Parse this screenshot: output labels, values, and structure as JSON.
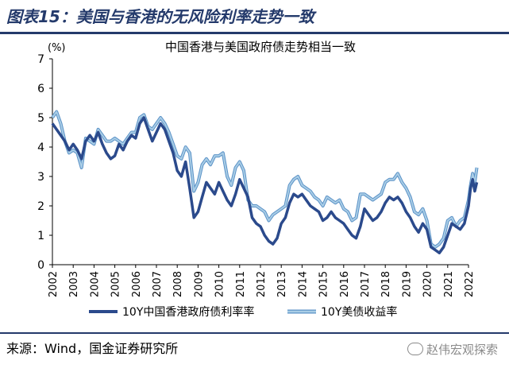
{
  "figure_title": "图表15：美国与香港的无风险利率走势一致",
  "source_text": "来源：Wind，国金证券研究所",
  "watermark": "赵伟宏观探索",
  "colors": {
    "hk": "#2b4a8c",
    "us": "#a9cde6",
    "us_edge": "#5b92c7",
    "title": "#243a6b"
  },
  "chart_data": {
    "type": "line",
    "title": "中国香港与美国政府债走势相当一致",
    "ylabel": "(%)",
    "xlabel": "",
    "ylim": [
      0,
      7
    ],
    "xlim": [
      2002,
      2022
    ],
    "yticks": [
      "0",
      "1",
      "2",
      "3",
      "4",
      "5",
      "6",
      "7"
    ],
    "xticks": [
      "2002",
      "2003",
      "2004",
      "2005",
      "2006",
      "2007",
      "2008",
      "2009",
      "2010",
      "2011",
      "2012",
      "2013",
      "2014",
      "2015",
      "2016",
      "2017",
      "2018",
      "2019",
      "2020",
      "2021",
      "2022"
    ],
    "grid": false,
    "legend": "bottom",
    "series": [
      {
        "name": "10Y中国香港政府债利率率",
        "color": "#2b4a8c",
        "points": [
          [
            2002.0,
            4.8
          ],
          [
            2002.2,
            4.6
          ],
          [
            2002.4,
            4.4
          ],
          [
            2002.6,
            4.2
          ],
          [
            2002.8,
            3.9
          ],
          [
            2003.0,
            4.1
          ],
          [
            2003.2,
            3.9
          ],
          [
            2003.4,
            3.6
          ],
          [
            2003.6,
            4.2
          ],
          [
            2003.8,
            4.4
          ],
          [
            2004.0,
            4.2
          ],
          [
            2004.2,
            4.5
          ],
          [
            2004.4,
            4.1
          ],
          [
            2004.6,
            3.8
          ],
          [
            2004.8,
            3.6
          ],
          [
            2005.0,
            3.7
          ],
          [
            2005.2,
            4.1
          ],
          [
            2005.4,
            3.9
          ],
          [
            2005.6,
            4.2
          ],
          [
            2005.8,
            4.4
          ],
          [
            2006.0,
            4.3
          ],
          [
            2006.2,
            4.8
          ],
          [
            2006.4,
            5.0
          ],
          [
            2006.6,
            4.6
          ],
          [
            2006.8,
            4.2
          ],
          [
            2007.0,
            4.5
          ],
          [
            2007.2,
            4.8
          ],
          [
            2007.4,
            4.6
          ],
          [
            2007.6,
            4.2
          ],
          [
            2007.8,
            3.8
          ],
          [
            2008.0,
            3.2
          ],
          [
            2008.2,
            3.0
          ],
          [
            2008.4,
            3.5
          ],
          [
            2008.6,
            2.6
          ],
          [
            2008.8,
            1.6
          ],
          [
            2009.0,
            1.8
          ],
          [
            2009.2,
            2.3
          ],
          [
            2009.4,
            2.8
          ],
          [
            2009.6,
            2.6
          ],
          [
            2009.8,
            2.4
          ],
          [
            2010.0,
            2.8
          ],
          [
            2010.2,
            2.5
          ],
          [
            2010.4,
            2.2
          ],
          [
            2010.6,
            2.0
          ],
          [
            2010.8,
            2.4
          ],
          [
            2011.0,
            2.9
          ],
          [
            2011.2,
            2.6
          ],
          [
            2011.4,
            2.3
          ],
          [
            2011.6,
            1.6
          ],
          [
            2011.8,
            1.4
          ],
          [
            2012.0,
            1.3
          ],
          [
            2012.2,
            1.0
          ],
          [
            2012.4,
            0.8
          ],
          [
            2012.6,
            0.7
          ],
          [
            2012.8,
            0.9
          ],
          [
            2013.0,
            1.4
          ],
          [
            2013.2,
            1.6
          ],
          [
            2013.4,
            2.1
          ],
          [
            2013.6,
            2.4
          ],
          [
            2013.8,
            2.3
          ],
          [
            2014.0,
            2.4
          ],
          [
            2014.2,
            2.2
          ],
          [
            2014.4,
            2.0
          ],
          [
            2014.6,
            1.9
          ],
          [
            2014.8,
            1.8
          ],
          [
            2015.0,
            1.5
          ],
          [
            2015.2,
            1.6
          ],
          [
            2015.4,
            1.8
          ],
          [
            2015.6,
            1.6
          ],
          [
            2015.8,
            1.5
          ],
          [
            2016.0,
            1.4
          ],
          [
            2016.2,
            1.2
          ],
          [
            2016.4,
            1.0
          ],
          [
            2016.6,
            0.9
          ],
          [
            2016.8,
            1.3
          ],
          [
            2017.0,
            1.9
          ],
          [
            2017.2,
            1.7
          ],
          [
            2017.4,
            1.5
          ],
          [
            2017.6,
            1.6
          ],
          [
            2017.8,
            1.8
          ],
          [
            2018.0,
            2.1
          ],
          [
            2018.2,
            2.3
          ],
          [
            2018.4,
            2.2
          ],
          [
            2018.6,
            2.3
          ],
          [
            2018.8,
            2.1
          ],
          [
            2019.0,
            1.8
          ],
          [
            2019.2,
            1.6
          ],
          [
            2019.4,
            1.3
          ],
          [
            2019.6,
            1.1
          ],
          [
            2019.8,
            1.4
          ],
          [
            2020.0,
            1.2
          ],
          [
            2020.2,
            0.6
          ],
          [
            2020.4,
            0.5
          ],
          [
            2020.6,
            0.4
          ],
          [
            2020.8,
            0.6
          ],
          [
            2021.0,
            1.0
          ],
          [
            2021.2,
            1.4
          ],
          [
            2021.4,
            1.3
          ],
          [
            2021.6,
            1.2
          ],
          [
            2021.8,
            1.4
          ],
          [
            2022.0,
            2.0
          ],
          [
            2022.1,
            2.6
          ],
          [
            2022.2,
            2.9
          ],
          [
            2022.3,
            2.5
          ],
          [
            2022.4,
            2.8
          ]
        ]
      },
      {
        "name": "10Y美债收益率",
        "color": "#a9cde6",
        "points": [
          [
            2002.0,
            5.0
          ],
          [
            2002.2,
            5.2
          ],
          [
            2002.4,
            4.8
          ],
          [
            2002.6,
            4.2
          ],
          [
            2002.8,
            3.8
          ],
          [
            2003.0,
            3.9
          ],
          [
            2003.2,
            3.8
          ],
          [
            2003.4,
            3.3
          ],
          [
            2003.6,
            4.3
          ],
          [
            2003.8,
            4.2
          ],
          [
            2004.0,
            4.1
          ],
          [
            2004.2,
            4.6
          ],
          [
            2004.4,
            4.4
          ],
          [
            2004.6,
            4.2
          ],
          [
            2004.8,
            4.2
          ],
          [
            2005.0,
            4.3
          ],
          [
            2005.2,
            4.2
          ],
          [
            2005.4,
            4.1
          ],
          [
            2005.6,
            4.3
          ],
          [
            2005.8,
            4.5
          ],
          [
            2006.0,
            4.5
          ],
          [
            2006.2,
            5.0
          ],
          [
            2006.4,
            5.1
          ],
          [
            2006.6,
            4.7
          ],
          [
            2006.8,
            4.6
          ],
          [
            2007.0,
            4.8
          ],
          [
            2007.2,
            5.0
          ],
          [
            2007.4,
            4.8
          ],
          [
            2007.6,
            4.5
          ],
          [
            2007.8,
            4.1
          ],
          [
            2008.0,
            3.7
          ],
          [
            2008.2,
            3.6
          ],
          [
            2008.4,
            4.0
          ],
          [
            2008.6,
            3.8
          ],
          [
            2008.8,
            2.5
          ],
          [
            2009.0,
            2.8
          ],
          [
            2009.2,
            3.4
          ],
          [
            2009.4,
            3.6
          ],
          [
            2009.6,
            3.4
          ],
          [
            2009.8,
            3.7
          ],
          [
            2010.0,
            3.7
          ],
          [
            2010.2,
            3.8
          ],
          [
            2010.4,
            3.0
          ],
          [
            2010.6,
            2.7
          ],
          [
            2010.8,
            3.3
          ],
          [
            2011.0,
            3.5
          ],
          [
            2011.2,
            3.2
          ],
          [
            2011.4,
            2.2
          ],
          [
            2011.6,
            2.0
          ],
          [
            2011.8,
            2.0
          ],
          [
            2012.0,
            1.9
          ],
          [
            2012.2,
            1.8
          ],
          [
            2012.4,
            1.5
          ],
          [
            2012.6,
            1.7
          ],
          [
            2012.8,
            1.8
          ],
          [
            2013.0,
            1.9
          ],
          [
            2013.2,
            2.0
          ],
          [
            2013.4,
            2.7
          ],
          [
            2013.6,
            2.9
          ],
          [
            2013.8,
            3.0
          ],
          [
            2014.0,
            2.7
          ],
          [
            2014.2,
            2.6
          ],
          [
            2014.4,
            2.5
          ],
          [
            2014.6,
            2.3
          ],
          [
            2014.8,
            2.2
          ],
          [
            2015.0,
            2.0
          ],
          [
            2015.2,
            2.3
          ],
          [
            2015.4,
            2.2
          ],
          [
            2015.6,
            2.1
          ],
          [
            2015.8,
            2.2
          ],
          [
            2016.0,
            1.9
          ],
          [
            2016.2,
            1.8
          ],
          [
            2016.4,
            1.5
          ],
          [
            2016.6,
            1.6
          ],
          [
            2016.8,
            2.4
          ],
          [
            2017.0,
            2.4
          ],
          [
            2017.2,
            2.3
          ],
          [
            2017.4,
            2.2
          ],
          [
            2017.6,
            2.3
          ],
          [
            2017.8,
            2.4
          ],
          [
            2018.0,
            2.8
          ],
          [
            2018.2,
            2.9
          ],
          [
            2018.4,
            2.9
          ],
          [
            2018.6,
            3.1
          ],
          [
            2018.8,
            2.8
          ],
          [
            2019.0,
            2.6
          ],
          [
            2019.2,
            2.3
          ],
          [
            2019.4,
            1.8
          ],
          [
            2019.6,
            1.7
          ],
          [
            2019.8,
            1.9
          ],
          [
            2020.0,
            1.5
          ],
          [
            2020.2,
            0.7
          ],
          [
            2020.4,
            0.6
          ],
          [
            2020.6,
            0.7
          ],
          [
            2020.8,
            0.9
          ],
          [
            2021.0,
            1.5
          ],
          [
            2021.2,
            1.6
          ],
          [
            2021.4,
            1.3
          ],
          [
            2021.6,
            1.5
          ],
          [
            2021.8,
            1.6
          ],
          [
            2022.0,
            2.2
          ],
          [
            2022.1,
            2.7
          ],
          [
            2022.2,
            3.1
          ],
          [
            2022.3,
            2.8
          ],
          [
            2022.4,
            3.3
          ]
        ]
      }
    ]
  }
}
